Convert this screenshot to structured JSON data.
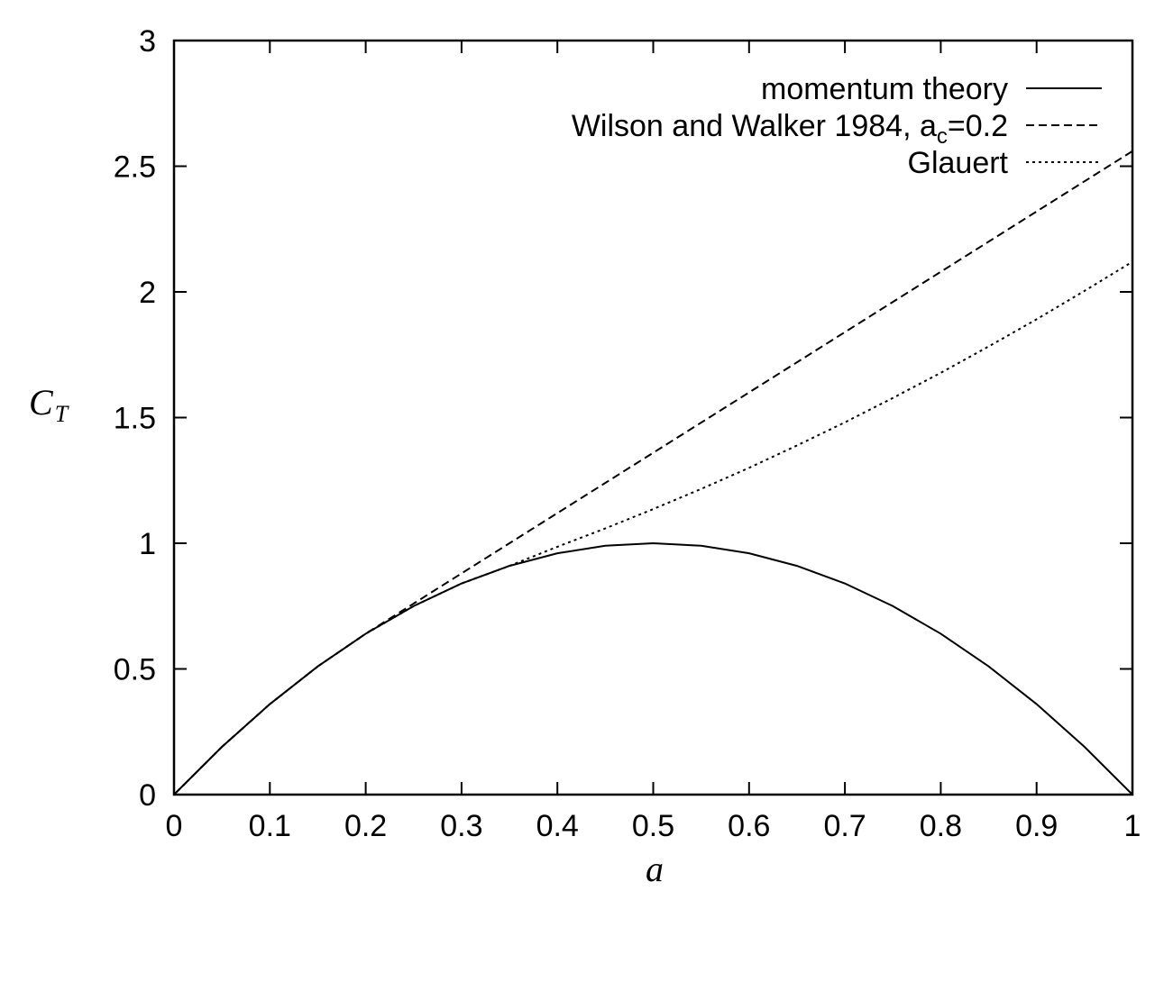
{
  "chart_data": {
    "type": "line",
    "xlabel": "a",
    "ylabel": {
      "main": "C",
      "sub": "T"
    },
    "xlim": [
      0,
      1
    ],
    "ylim": [
      0,
      3
    ],
    "xticks": [
      "0",
      "0.1",
      "0.2",
      "0.3",
      "0.4",
      "0.5",
      "0.6",
      "0.7",
      "0.8",
      "0.9",
      "1"
    ],
    "yticks": [
      "0",
      "0.5",
      "1",
      "1.5",
      "2",
      "2.5",
      "3"
    ],
    "grid": false,
    "legend_position": "top-right",
    "series": [
      {
        "id": "momentum",
        "name": "momentum theory",
        "style": "solid",
        "x": [
          0,
          0.05,
          0.1,
          0.15,
          0.2,
          0.25,
          0.3,
          0.35,
          0.4,
          0.45,
          0.5,
          0.55,
          0.6,
          0.65,
          0.7,
          0.75,
          0.8,
          0.85,
          0.9,
          0.95,
          1.0
        ],
        "y": [
          0,
          0.19,
          0.36,
          0.51,
          0.64,
          0.75,
          0.84,
          0.91,
          0.96,
          0.99,
          1.0,
          0.99,
          0.96,
          0.91,
          0.84,
          0.75,
          0.64,
          0.51,
          0.36,
          0.19,
          0
        ]
      },
      {
        "id": "wilson",
        "name": {
          "main": "Wilson and Walker 1984, a",
          "sub": "c",
          "tail": "=0.2"
        },
        "style": "dashed",
        "x": [
          0,
          0.05,
          0.1,
          0.15,
          0.2,
          0.3,
          0.4,
          0.5,
          0.6,
          0.7,
          0.8,
          0.9,
          1.0
        ],
        "y": [
          0,
          0.19,
          0.36,
          0.51,
          0.64,
          0.88,
          1.12,
          1.36,
          1.6,
          1.84,
          2.08,
          2.32,
          2.56
        ]
      },
      {
        "id": "glauert",
        "name": "Glauert",
        "style": "dotted",
        "x": [
          0,
          0.05,
          0.1,
          0.15,
          0.2,
          0.25,
          0.3,
          0.35,
          0.4,
          0.45,
          0.5,
          0.55,
          0.6,
          0.65,
          0.7,
          0.75,
          0.8,
          0.85,
          0.9,
          0.95,
          1.0
        ],
        "y": [
          0,
          0.19,
          0.36,
          0.51,
          0.64,
          0.75,
          0.84,
          0.91,
          0.986,
          1.059,
          1.136,
          1.216,
          1.3,
          1.389,
          1.481,
          1.578,
          1.678,
          1.783,
          1.891,
          2.004,
          2.12
        ]
      }
    ]
  }
}
